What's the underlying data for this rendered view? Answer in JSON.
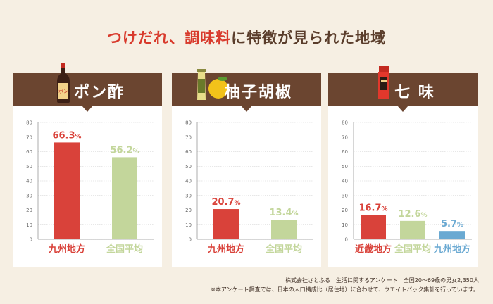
{
  "header": {
    "title_red": "つけだれ、調味料",
    "title_rest": "に特徴が見られた地域"
  },
  "colors": {
    "red": "#d9423a",
    "green": "#c3d69b",
    "blue": "#6aa9d2",
    "brown": "#6b4530"
  },
  "chart_data": [
    {
      "type": "bar",
      "title": "ポン酢",
      "icon": "ponzu-bottle-icon",
      "ylim": [
        0,
        80
      ],
      "yticks": [
        0,
        10,
        20,
        30,
        40,
        50,
        60,
        70,
        80
      ],
      "categories": [
        "九州地方",
        "全国平均"
      ],
      "values": [
        66.3,
        56.2
      ],
      "value_labels": [
        "66.3",
        "56.2"
      ],
      "colors": [
        "red",
        "green"
      ]
    },
    {
      "type": "bar",
      "title": "柚子胡椒",
      "icon": "yuzukosho-tube-icon",
      "ylim": [
        0,
        80
      ],
      "yticks": [
        0,
        10,
        20,
        30,
        40,
        50,
        60,
        70,
        80
      ],
      "categories": [
        "九州地方",
        "全国平均"
      ],
      "values": [
        20.7,
        13.4
      ],
      "value_labels": [
        "20.7",
        "13.4"
      ],
      "colors": [
        "red",
        "green"
      ]
    },
    {
      "type": "bar",
      "title": "七 味",
      "icon": "shichimi-jar-icon",
      "ylim": [
        0,
        80
      ],
      "yticks": [
        0,
        10,
        20,
        30,
        40,
        50,
        60,
        70,
        80
      ],
      "categories": [
        "近畿地方",
        "全国平均",
        "九州地方"
      ],
      "values": [
        16.7,
        12.6,
        5.7
      ],
      "value_labels": [
        "16.7",
        "12.6",
        "5.7"
      ],
      "colors": [
        "red",
        "green",
        "blue"
      ]
    }
  ],
  "percent_sign": "%",
  "footer": {
    "line1": "株式会社さとふる　生活に関するアンケート　全国20～69歳の男女2,350人",
    "line2": "※本アンケート調査では、日本の人口構成比（居住地）に合わせて、ウエイトバック集計を行っています。"
  }
}
